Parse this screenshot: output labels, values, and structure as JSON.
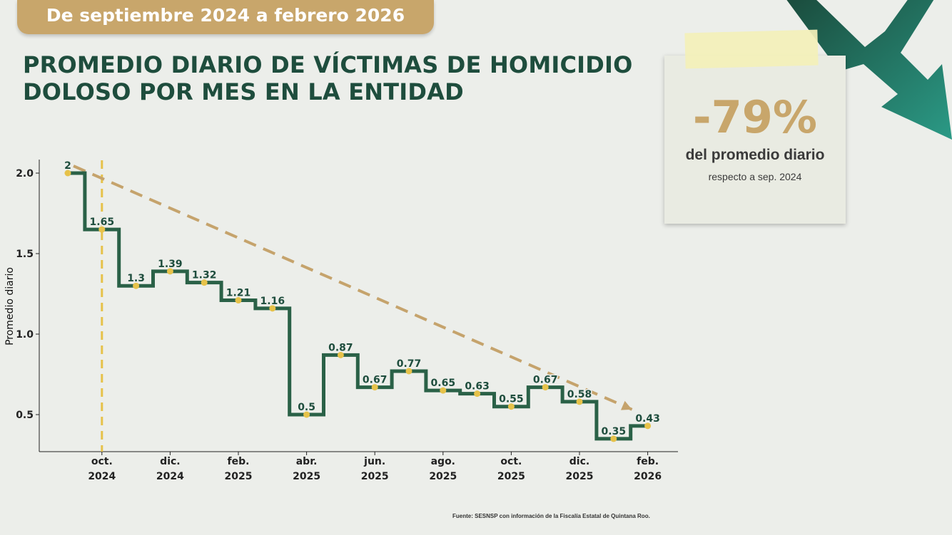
{
  "banner": {
    "text": "De septiembre 2024 a febrero 2026"
  },
  "title": {
    "line1": "PROMEDIO DIARIO DE VÍCTIMAS DE HOMICIDIO",
    "line2": "DOLOSO POR MES EN LA ENTIDAD"
  },
  "note": {
    "value": "-79%",
    "line1": "del promedio diario",
    "line2": "respecto a sep. 2024"
  },
  "source": "Fuente: SESNSP con información de la Fiscalía Estatal de Quintana Roo.",
  "colors": {
    "line": "#2a6147",
    "marker": "#e6c24a",
    "trend": "#c5a36c",
    "vline": "#e6c24a",
    "label": "#1e4d3d",
    "note_value": "#c8a66b",
    "arrow": "#1e5b49"
  },
  "chart_data": {
    "type": "line",
    "step": true,
    "ylabel": "Promedio diario",
    "xlabel": "",
    "ylim": [
      0.3,
      2.08
    ],
    "yticks": [
      0.5,
      1.0,
      1.5,
      2.0
    ],
    "ytick_labels": [
      "0.5",
      "1.0",
      "1.5",
      "2.0"
    ],
    "x": [
      "sep. 2024",
      "oct. 2024",
      "nov. 2024",
      "dic. 2024",
      "ene. 2025",
      "feb. 2025",
      "mar. 2025",
      "abr. 2025",
      "may. 2025",
      "jun. 2025",
      "jul. 2025",
      "ago. 2025",
      "sep. 2025",
      "oct. 2025",
      "nov. 2025",
      "dic. 2025",
      "ene. 2026",
      "feb. 2026"
    ],
    "series": [
      {
        "values": [
          2.0,
          1.65,
          1.3,
          1.39,
          1.32,
          1.21,
          1.16,
          0.5,
          0.87,
          0.67,
          0.77,
          0.65,
          0.63,
          0.55,
          0.67,
          0.58,
          0.35,
          0.43
        ]
      }
    ],
    "data_labels": [
      "2",
      "1.65",
      "1.3",
      "1.39",
      "1.32",
      "1.21",
      "1.16",
      "0.5",
      "0.87",
      "0.67",
      "0.77",
      "0.65",
      "0.63",
      "0.55",
      "0.67",
      "0.58",
      "0.35",
      "0.43"
    ],
    "xtick_indices": [
      1,
      3,
      5,
      7,
      9,
      11,
      13,
      15,
      17
    ],
    "xtick_labels": [
      [
        "oct.",
        "2024"
      ],
      [
        "dic.",
        "2024"
      ],
      [
        "feb.",
        "2025"
      ],
      [
        "abr.",
        "2025"
      ],
      [
        "jun.",
        "2025"
      ],
      [
        "ago.",
        "2025"
      ],
      [
        "oct.",
        "2025"
      ],
      [
        "dic.",
        "2025"
      ],
      [
        "feb.",
        "2026"
      ]
    ],
    "trend": {
      "from": {
        "x": "sep. 2024",
        "y": 2.0
      },
      "to": {
        "x": "feb. 2026",
        "y": 0.43
      },
      "style": "dashed"
    },
    "reference_line": {
      "x": "oct. 2024",
      "style": "dashed"
    },
    "grid": false,
    "legend": "none"
  }
}
